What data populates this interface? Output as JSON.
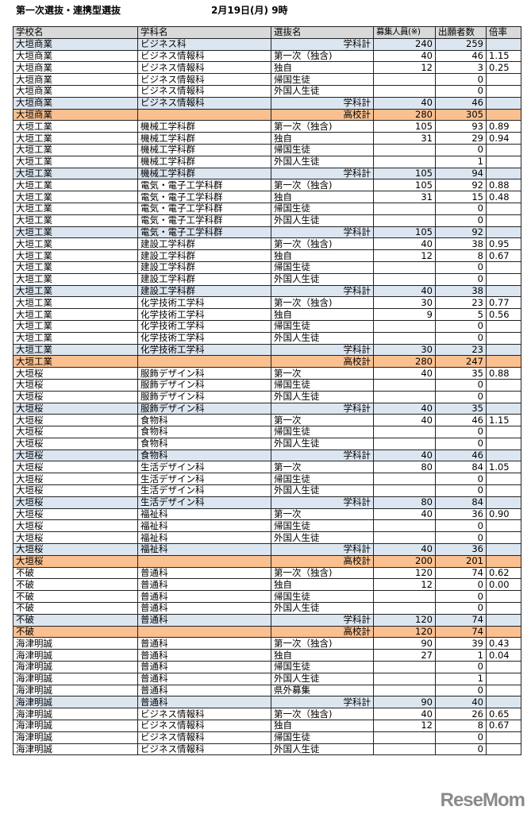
{
  "header": {
    "title": "第一次選抜・連携型選抜",
    "datetime": "2月19日(月) 9時"
  },
  "columns": [
    "学校名",
    "学科名",
    "選抜名",
    "募集人員(※)",
    "出願者数",
    "倍率"
  ],
  "rows": [
    [
      "大垣商業",
      "ビジネス科",
      "学科計",
      "240",
      "259",
      "",
      "sub"
    ],
    [
      "大垣商業",
      "ビジネス情報科",
      "第一次（独含)",
      "40",
      "46",
      "1.15",
      ""
    ],
    [
      "大垣商業",
      "ビジネス情報科",
      "独自",
      "12",
      "3",
      "0.25",
      ""
    ],
    [
      "大垣商業",
      "ビジネス情報科",
      "帰国生徒",
      "",
      "0",
      "",
      ""
    ],
    [
      "大垣商業",
      "ビジネス情報科",
      "外国人生徒",
      "",
      "0",
      "",
      ""
    ],
    [
      "大垣商業",
      "ビジネス情報科",
      "学科計",
      "40",
      "46",
      "",
      "sub"
    ],
    [
      "大垣商業",
      "",
      "高校計",
      "280",
      "305",
      "",
      "total"
    ],
    [
      "大垣工業",
      "機械工学科群",
      "第一次（独含)",
      "105",
      "93",
      "0.89",
      ""
    ],
    [
      "大垣工業",
      "機械工学科群",
      "独自",
      "31",
      "29",
      "0.94",
      ""
    ],
    [
      "大垣工業",
      "機械工学科群",
      "帰国生徒",
      "",
      "0",
      "",
      ""
    ],
    [
      "大垣工業",
      "機械工学科群",
      "外国人生徒",
      "",
      "1",
      "",
      ""
    ],
    [
      "大垣工業",
      "機械工学科群",
      "学科計",
      "105",
      "94",
      "",
      "sub"
    ],
    [
      "大垣工業",
      "電気・電子工学科群",
      "第一次（独含)",
      "105",
      "92",
      "0.88",
      ""
    ],
    [
      "大垣工業",
      "電気・電子工学科群",
      "独自",
      "31",
      "15",
      "0.48",
      ""
    ],
    [
      "大垣工業",
      "電気・電子工学科群",
      "帰国生徒",
      "",
      "0",
      "",
      ""
    ],
    [
      "大垣工業",
      "電気・電子工学科群",
      "外国人生徒",
      "",
      "0",
      "",
      ""
    ],
    [
      "大垣工業",
      "電気・電子工学科群",
      "学科計",
      "105",
      "92",
      "",
      "sub"
    ],
    [
      "大垣工業",
      "建設工学科群",
      "第一次（独含)",
      "40",
      "38",
      "0.95",
      ""
    ],
    [
      "大垣工業",
      "建設工学科群",
      "独自",
      "12",
      "8",
      "0.67",
      ""
    ],
    [
      "大垣工業",
      "建設工学科群",
      "帰国生徒",
      "",
      "0",
      "",
      ""
    ],
    [
      "大垣工業",
      "建設工学科群",
      "外国人生徒",
      "",
      "0",
      "",
      ""
    ],
    [
      "大垣工業",
      "建設工学科群",
      "学科計",
      "40",
      "38",
      "",
      "sub"
    ],
    [
      "大垣工業",
      "化学技術工学科",
      "第一次（独含)",
      "30",
      "23",
      "0.77",
      ""
    ],
    [
      "大垣工業",
      "化学技術工学科",
      "独自",
      "9",
      "5",
      "0.56",
      ""
    ],
    [
      "大垣工業",
      "化学技術工学科",
      "帰国生徒",
      "",
      "0",
      "",
      ""
    ],
    [
      "大垣工業",
      "化学技術工学科",
      "外国人生徒",
      "",
      "0",
      "",
      ""
    ],
    [
      "大垣工業",
      "化学技術工学科",
      "学科計",
      "30",
      "23",
      "",
      "sub"
    ],
    [
      "大垣工業",
      "",
      "高校計",
      "280",
      "247",
      "",
      "total"
    ],
    [
      "大垣桜",
      "服飾デザイン科",
      "第一次",
      "40",
      "35",
      "0.88",
      ""
    ],
    [
      "大垣桜",
      "服飾デザイン科",
      "帰国生徒",
      "",
      "0",
      "",
      ""
    ],
    [
      "大垣桜",
      "服飾デザイン科",
      "外国人生徒",
      "",
      "0",
      "",
      ""
    ],
    [
      "大垣桜",
      "服飾デザイン科",
      "学科計",
      "40",
      "35",
      "",
      "sub"
    ],
    [
      "大垣桜",
      "食物科",
      "第一次",
      "40",
      "46",
      "1.15",
      ""
    ],
    [
      "大垣桜",
      "食物科",
      "帰国生徒",
      "",
      "0",
      "",
      ""
    ],
    [
      "大垣桜",
      "食物科",
      "外国人生徒",
      "",
      "0",
      "",
      ""
    ],
    [
      "大垣桜",
      "食物科",
      "学科計",
      "40",
      "46",
      "",
      "sub"
    ],
    [
      "大垣桜",
      "生活デザイン科",
      "第一次",
      "80",
      "84",
      "1.05",
      ""
    ],
    [
      "大垣桜",
      "生活デザイン科",
      "帰国生徒",
      "",
      "0",
      "",
      ""
    ],
    [
      "大垣桜",
      "生活デザイン科",
      "外国人生徒",
      "",
      "0",
      "",
      ""
    ],
    [
      "大垣桜",
      "生活デザイン科",
      "学科計",
      "80",
      "84",
      "",
      "sub"
    ],
    [
      "大垣桜",
      "福祉科",
      "第一次",
      "40",
      "36",
      "0.90",
      ""
    ],
    [
      "大垣桜",
      "福祉科",
      "帰国生徒",
      "",
      "0",
      "",
      ""
    ],
    [
      "大垣桜",
      "福祉科",
      "外国人生徒",
      "",
      "0",
      "",
      ""
    ],
    [
      "大垣桜",
      "福祉科",
      "学科計",
      "40",
      "36",
      "",
      "sub"
    ],
    [
      "大垣桜",
      "",
      "高校計",
      "200",
      "201",
      "",
      "total"
    ],
    [
      "不破",
      "普通科",
      "第一次（独含)",
      "120",
      "74",
      "0.62",
      ""
    ],
    [
      "不破",
      "普通科",
      "独自",
      "12",
      "0",
      "0.00",
      ""
    ],
    [
      "不破",
      "普通科",
      "帰国生徒",
      "",
      "0",
      "",
      ""
    ],
    [
      "不破",
      "普通科",
      "外国人生徒",
      "",
      "0",
      "",
      ""
    ],
    [
      "不破",
      "普通科",
      "学科計",
      "120",
      "74",
      "",
      "sub"
    ],
    [
      "不破",
      "",
      "高校計",
      "120",
      "74",
      "",
      "total"
    ],
    [
      "海津明誠",
      "普通科",
      "第一次（独含)",
      "90",
      "39",
      "0.43",
      ""
    ],
    [
      "海津明誠",
      "普通科",
      "独自",
      "27",
      "1",
      "0.04",
      ""
    ],
    [
      "海津明誠",
      "普通科",
      "帰国生徒",
      "",
      "0",
      "",
      ""
    ],
    [
      "海津明誠",
      "普通科",
      "外国人生徒",
      "",
      "1",
      "",
      ""
    ],
    [
      "海津明誠",
      "普通科",
      "県外募集",
      "",
      "0",
      "",
      ""
    ],
    [
      "海津明誠",
      "普通科",
      "学科計",
      "90",
      "40",
      "",
      "sub"
    ],
    [
      "海津明誠",
      "ビジネス情報科",
      "第一次（独含)",
      "40",
      "26",
      "0.65",
      ""
    ],
    [
      "海津明誠",
      "ビジネス情報科",
      "独自",
      "12",
      "8",
      "0.67",
      ""
    ],
    [
      "海津明誠",
      "ビジネス情報科",
      "帰国生徒",
      "",
      "0",
      "",
      ""
    ],
    [
      "海津明誠",
      "ビジネス情報科",
      "外国人生徒",
      "",
      "0",
      "",
      ""
    ]
  ],
  "colors": {
    "subtotal_bg": "#dce6f1",
    "school_total_bg": "#fac090",
    "header_bg": "#d9d9d9"
  },
  "watermark": "ReseMom"
}
